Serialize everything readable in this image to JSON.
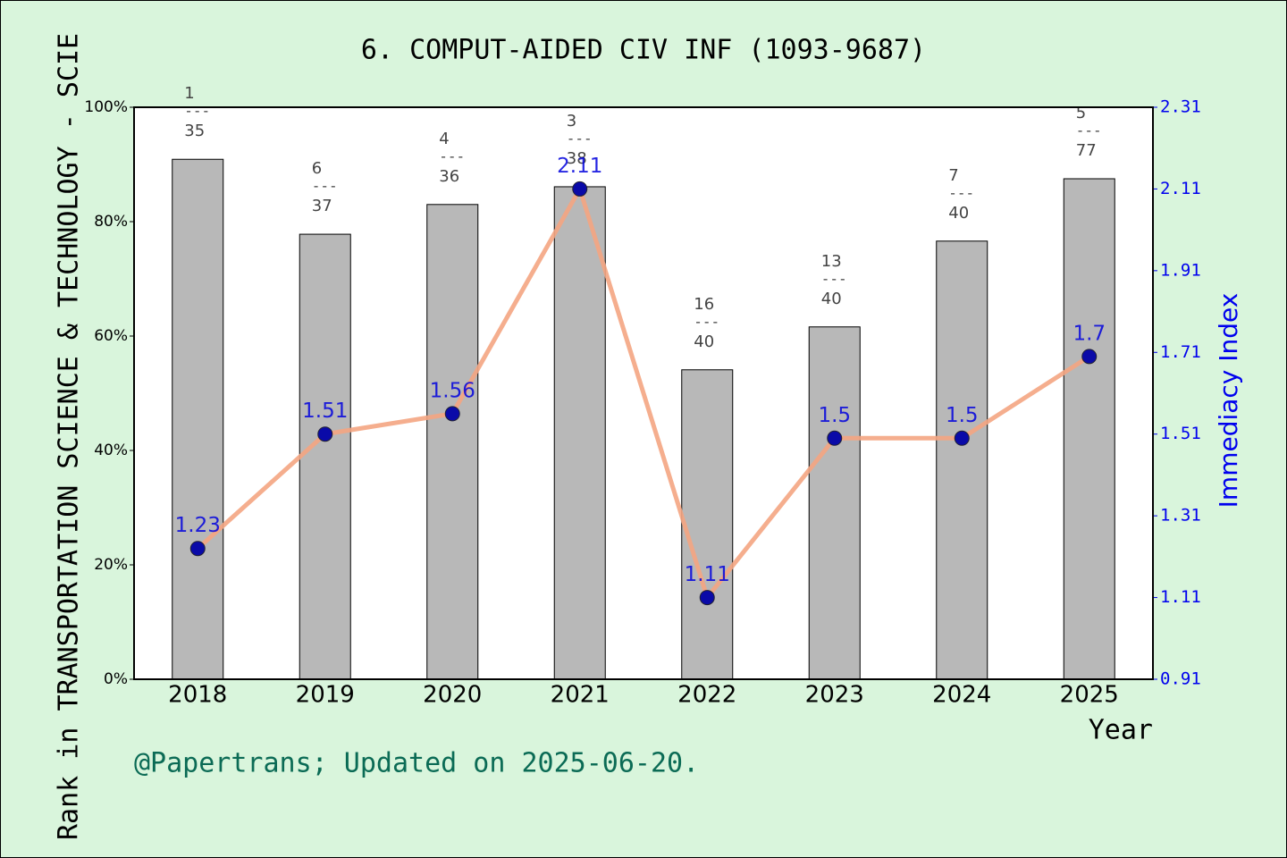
{
  "chart_data": {
    "type": "bar-line",
    "title": "6. COMPUT-AIDED CIV INF (1093-9687)",
    "ylabel": "Rank in TRANSPORTATION SCIENCE & TECHNOLOGY - SCIE",
    "y2label": "Immediacy Index",
    "xlabel": "Year",
    "footer": "@Papertrans; Updated on 2025-06-20.",
    "categories": [
      "2018",
      "2019",
      "2020",
      "2021",
      "2022",
      "2023",
      "2024",
      "2025"
    ],
    "bars": {
      "color": "#b8b8b8",
      "values": [
        90.9,
        77.8,
        83.0,
        86.1,
        54.1,
        61.6,
        76.6,
        87.5
      ],
      "ranks": [
        1,
        6,
        4,
        3,
        16,
        13,
        7,
        5
      ],
      "totals": [
        35,
        37,
        36,
        38,
        40,
        40,
        40,
        77
      ],
      "separator": "---"
    },
    "line": {
      "color": "#f4a582",
      "marker_color": "#0a0aa8",
      "label_color": "#0000dd",
      "axis": "y2",
      "values": [
        1.23,
        1.51,
        1.56,
        2.11,
        1.11,
        1.5,
        1.5,
        1.7
      ]
    },
    "ylim": [
      0,
      100
    ],
    "yticks": [
      {
        "value": 0,
        "label": "0%"
      },
      {
        "value": 20,
        "label": "20%"
      },
      {
        "value": 40,
        "label": "40%"
      },
      {
        "value": 60,
        "label": "60%"
      },
      {
        "value": 80,
        "label": "80%"
      },
      {
        "value": 100,
        "label": "100%"
      }
    ],
    "y2lim": [
      0.91,
      2.31
    ],
    "y2ticks": [
      0.91,
      1.11,
      1.31,
      1.51,
      1.71,
      1.91,
      2.11,
      2.31
    ]
  }
}
